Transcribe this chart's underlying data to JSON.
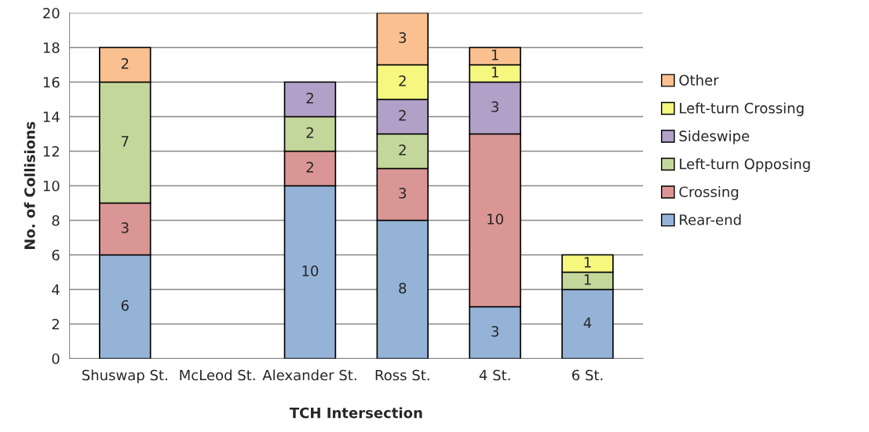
{
  "chart_data": {
    "type": "bar",
    "stacked": true,
    "xlabel": "TCH Intersection",
    "ylabel": "No. of Collisions",
    "categories": [
      "Shuswap St.",
      "McLeod St.",
      "Alexander St.",
      "Ross St.",
      "4 St.",
      "6 St."
    ],
    "series": [
      {
        "name": "Rear-end",
        "color": "#95b3d7",
        "values": [
          6,
          null,
          10,
          8,
          3,
          4
        ]
      },
      {
        "name": "Crossing",
        "color": "#da9694",
        "values": [
          3,
          null,
          2,
          3,
          10,
          null
        ]
      },
      {
        "name": "Left-turn Opposing",
        "color": "#c4d79b",
        "values": [
          7,
          null,
          2,
          2,
          null,
          1
        ]
      },
      {
        "name": "Sideswipe",
        "color": "#b1a0c7",
        "values": [
          null,
          null,
          2,
          2,
          3,
          null
        ]
      },
      {
        "name": "Left-turn Crossing",
        "color": "#f5f77f",
        "values": [
          null,
          null,
          null,
          2,
          1,
          1
        ]
      },
      {
        "name": "Other",
        "color": "#fac090",
        "values": [
          2,
          null,
          null,
          3,
          1,
          null
        ]
      }
    ],
    "ylim": [
      0,
      20
    ],
    "yticks": [
      0,
      2,
      4,
      6,
      8,
      10,
      12,
      14,
      16,
      18,
      20
    ],
    "grid": "y",
    "legend": "right",
    "data_labels": true
  }
}
